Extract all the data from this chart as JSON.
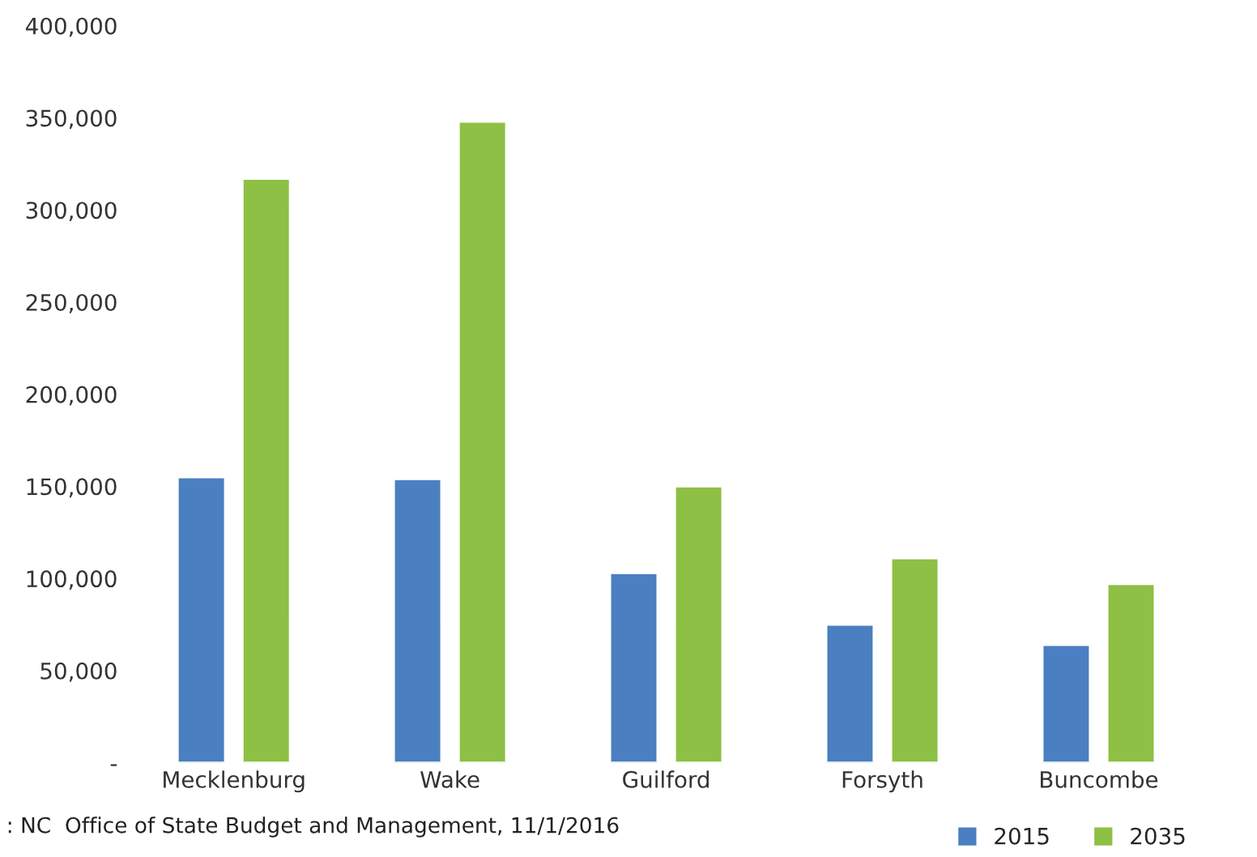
{
  "chart_data": {
    "type": "bar",
    "categories": [
      "Mecklenburg",
      "Wake",
      "Guilford",
      "Forsyth",
      "Buncombe"
    ],
    "series": [
      {
        "name": "2015",
        "color": "#4a7fc1",
        "values": [
          155000,
          154000,
          103000,
          75000,
          64000
        ]
      },
      {
        "name": "2035",
        "color": "#8dc044",
        "values": [
          317000,
          348000,
          150000,
          111000,
          97000
        ]
      }
    ],
    "ylim": [
      0,
      400000
    ],
    "yticks": [
      {
        "value": 0,
        "label": "-"
      },
      {
        "value": 50000,
        "label": "50,000"
      },
      {
        "value": 100000,
        "label": "100,000"
      },
      {
        "value": 150000,
        "label": "150,000"
      },
      {
        "value": 200000,
        "label": "200,000"
      },
      {
        "value": 250000,
        "label": "250,000"
      },
      {
        "value": 300000,
        "label": "300,000"
      },
      {
        "value": 350000,
        "label": "350,000"
      },
      {
        "value": 400000,
        "label": "400,000"
      }
    ],
    "grid": false,
    "legend": "bottom right",
    "annotations": [
      ": NC  Office of State Budget and Management, 11/1/2016"
    ]
  }
}
